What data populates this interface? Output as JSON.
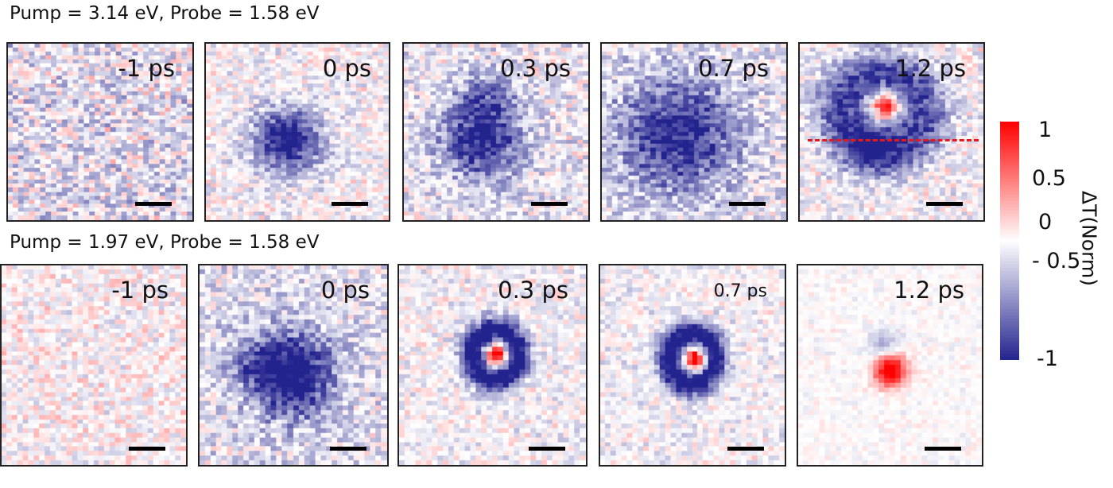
{
  "chart_data": {
    "type": "heatmap",
    "rows": [
      {
        "title": "Pump = 3.14 eV, Probe = 1.58 eV",
        "panels": [
          "-1 ps",
          "0 ps",
          "0.3 ps",
          "0.7 ps",
          "1.2 ps"
        ]
      },
      {
        "title": "Pump = 1.97 eV, Probe = 1.58 eV",
        "panels": [
          "-1 ps",
          "0 ps",
          "0.3 ps",
          "0.7 ps",
          "1.2 ps"
        ]
      }
    ],
    "colorbar": {
      "label": "ΔT(Norm)",
      "range": [
        -1,
        1
      ],
      "ticks": [
        "1",
        "0.5",
        "0",
        "- 0.5",
        "-1"
      ],
      "colors": {
        "max": "#ff0000",
        "zero": "#ffffff",
        "min": "#23238e"
      }
    },
    "line_cut": {
      "panel": "1.2 ps",
      "row": 0,
      "color": "#e41a1a",
      "style": "dashed"
    }
  }
}
